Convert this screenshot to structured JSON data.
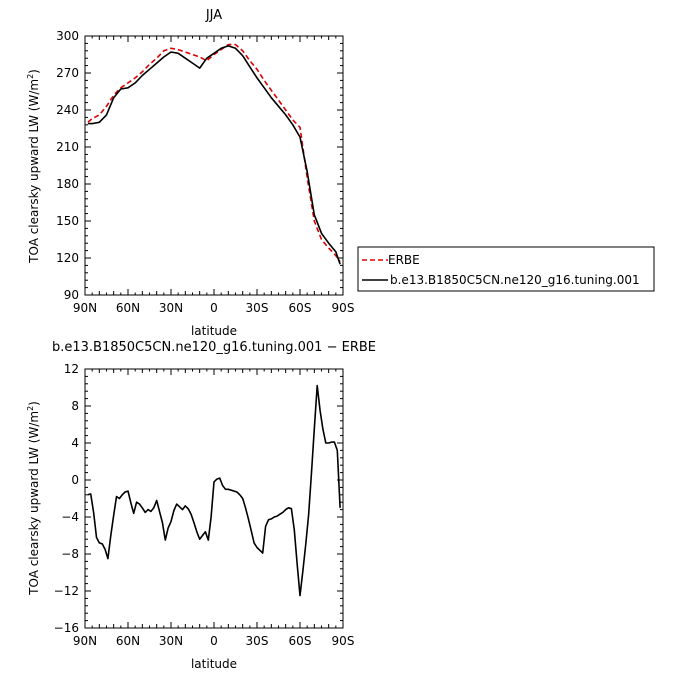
{
  "chart_data": [
    {
      "type": "line",
      "title": "JJA",
      "xlabel": "latitude",
      "ylabel": "TOA clearsky upward LW (W/m",
      "ylabel_sup": "2",
      "ylabel_close": ")",
      "xlim": [
        90,
        -90
      ],
      "ylim": [
        90,
        300
      ],
      "x_ticks": [
        90,
        60,
        30,
        0,
        -30,
        -60,
        -90
      ],
      "x_tick_labels": [
        "90N",
        "60N",
        "30N",
        "0",
        "30S",
        "60S",
        "90S"
      ],
      "y_ticks": [
        90,
        120,
        150,
        180,
        210,
        240,
        270,
        300
      ],
      "y_tick_labels": [
        "90",
        "120",
        "150",
        "180",
        "210",
        "240",
        "270",
        "300"
      ],
      "legend": "right",
      "series": [
        {
          "name": "ERBE",
          "style": "dashed",
          "color": "#dd0000",
          "x": [
            88,
            85,
            80,
            75,
            70,
            65,
            60,
            55,
            50,
            45,
            40,
            35,
            30,
            25,
            20,
            15,
            10,
            5,
            0,
            -5,
            -10,
            -15,
            -20,
            -25,
            -30,
            -35,
            -40,
            -45,
            -50,
            -55,
            -60,
            -65,
            -70,
            -75,
            -80,
            -85,
            -88
          ],
          "values": [
            230,
            233,
            236,
            243,
            252,
            258,
            262,
            266,
            271,
            277,
            282,
            288,
            290,
            289,
            287,
            285,
            283,
            280,
            285,
            289,
            293,
            293,
            288,
            280,
            273,
            264,
            256,
            248,
            240,
            232,
            226,
            185,
            150,
            135,
            128,
            122,
            117
          ]
        },
        {
          "name": "b.e13.B1850C5CN.ne120_g16.tuning.001",
          "style": "solid",
          "color": "#000000",
          "x": [
            88,
            85,
            80,
            75,
            70,
            65,
            60,
            55,
            50,
            45,
            40,
            35,
            30,
            25,
            20,
            15,
            10,
            5,
            0,
            -5,
            -10,
            -15,
            -20,
            -25,
            -30,
            -35,
            -40,
            -45,
            -50,
            -55,
            -60,
            -65,
            -70,
            -75,
            -80,
            -85,
            -88
          ],
          "values": [
            229,
            229,
            230,
            236,
            250,
            257,
            258,
            262,
            268,
            273,
            278,
            283,
            287,
            286,
            282,
            278,
            274,
            282,
            286,
            290,
            292,
            290,
            284,
            275,
            266,
            258,
            250,
            243,
            236,
            228,
            218,
            190,
            155,
            140,
            132,
            125,
            115
          ]
        }
      ]
    },
    {
      "type": "line",
      "title": "b.e13.B1850C5CN.ne120_g16.tuning.001 − ERBE",
      "xlabel": "latitude",
      "ylabel": "TOA clearsky upward LW (W/m",
      "ylabel_sup": "2",
      "ylabel_close": ")",
      "xlim": [
        90,
        -90
      ],
      "ylim": [
        -16,
        12
      ],
      "x_ticks": [
        90,
        60,
        30,
        0,
        -30,
        -60,
        -90
      ],
      "x_tick_labels": [
        "90N",
        "60N",
        "30N",
        "0",
        "30S",
        "60S",
        "90S"
      ],
      "y_ticks": [
        -16,
        -12,
        -8,
        -4,
        0,
        4,
        8,
        12
      ],
      "y_tick_labels": [
        "−16",
        "−12",
        "−8",
        "−4",
        "0",
        "4",
        "8",
        "12"
      ],
      "series": [
        {
          "style": "solid",
          "color": "#000000",
          "x": [
            88,
            86,
            84,
            82,
            80,
            78,
            76,
            74,
            72,
            70,
            68,
            66,
            64,
            62,
            60,
            58,
            56,
            54,
            52,
            50,
            48,
            46,
            44,
            42,
            40,
            38,
            36,
            34,
            32,
            30,
            28,
            26,
            24,
            22,
            20,
            18,
            16,
            14,
            12,
            10,
            8,
            6,
            4,
            2,
            0,
            -2,
            -4,
            -6,
            -8,
            -10,
            -12,
            -14,
            -16,
            -18,
            -20,
            -22,
            -24,
            -26,
            -28,
            -30,
            -32,
            -34,
            -36,
            -38,
            -40,
            -42,
            -44,
            -46,
            -48,
            -50,
            -52,
            -54,
            -56,
            -58,
            -60,
            -62,
            -64,
            -66,
            -68,
            -70,
            -72,
            -74,
            -76,
            -78,
            -80,
            -82,
            -84,
            -86,
            -88
          ],
          "values": [
            -1.6,
            -1.5,
            -3.5,
            -6.2,
            -6.8,
            -6.9,
            -7.5,
            -8.5,
            -6,
            -3.8,
            -1.8,
            -2,
            -1.6,
            -1.3,
            -1.2,
            -2.5,
            -3.6,
            -2.4,
            -2.6,
            -3,
            -3.5,
            -3.2,
            -3.4,
            -3,
            -2.2,
            -3.4,
            -4.6,
            -6.5,
            -5.2,
            -4.5,
            -3.3,
            -2.6,
            -2.9,
            -3.2,
            -2.8,
            -3.1,
            -3.7,
            -4.6,
            -5.6,
            -6.4,
            -6,
            -5.6,
            -6.5,
            -4,
            -0.2,
            0.1,
            0.2,
            -0.6,
            -1,
            -1,
            -1.1,
            -1.2,
            -1.3,
            -1.6,
            -2,
            -3,
            -4.2,
            -5.5,
            -6.8,
            -7.3,
            -7.6,
            -7.9,
            -5,
            -4.3,
            -4.2,
            -4,
            -3.9,
            -3.7,
            -3.5,
            -3.2,
            -3,
            -3.1,
            -5.4,
            -9,
            -12.5,
            -9.8,
            -7,
            -3.8,
            0.8,
            5.5,
            10.2,
            7.5,
            5.5,
            4,
            4,
            4.1,
            4.1,
            3.2,
            -3
          ]
        }
      ]
    }
  ]
}
